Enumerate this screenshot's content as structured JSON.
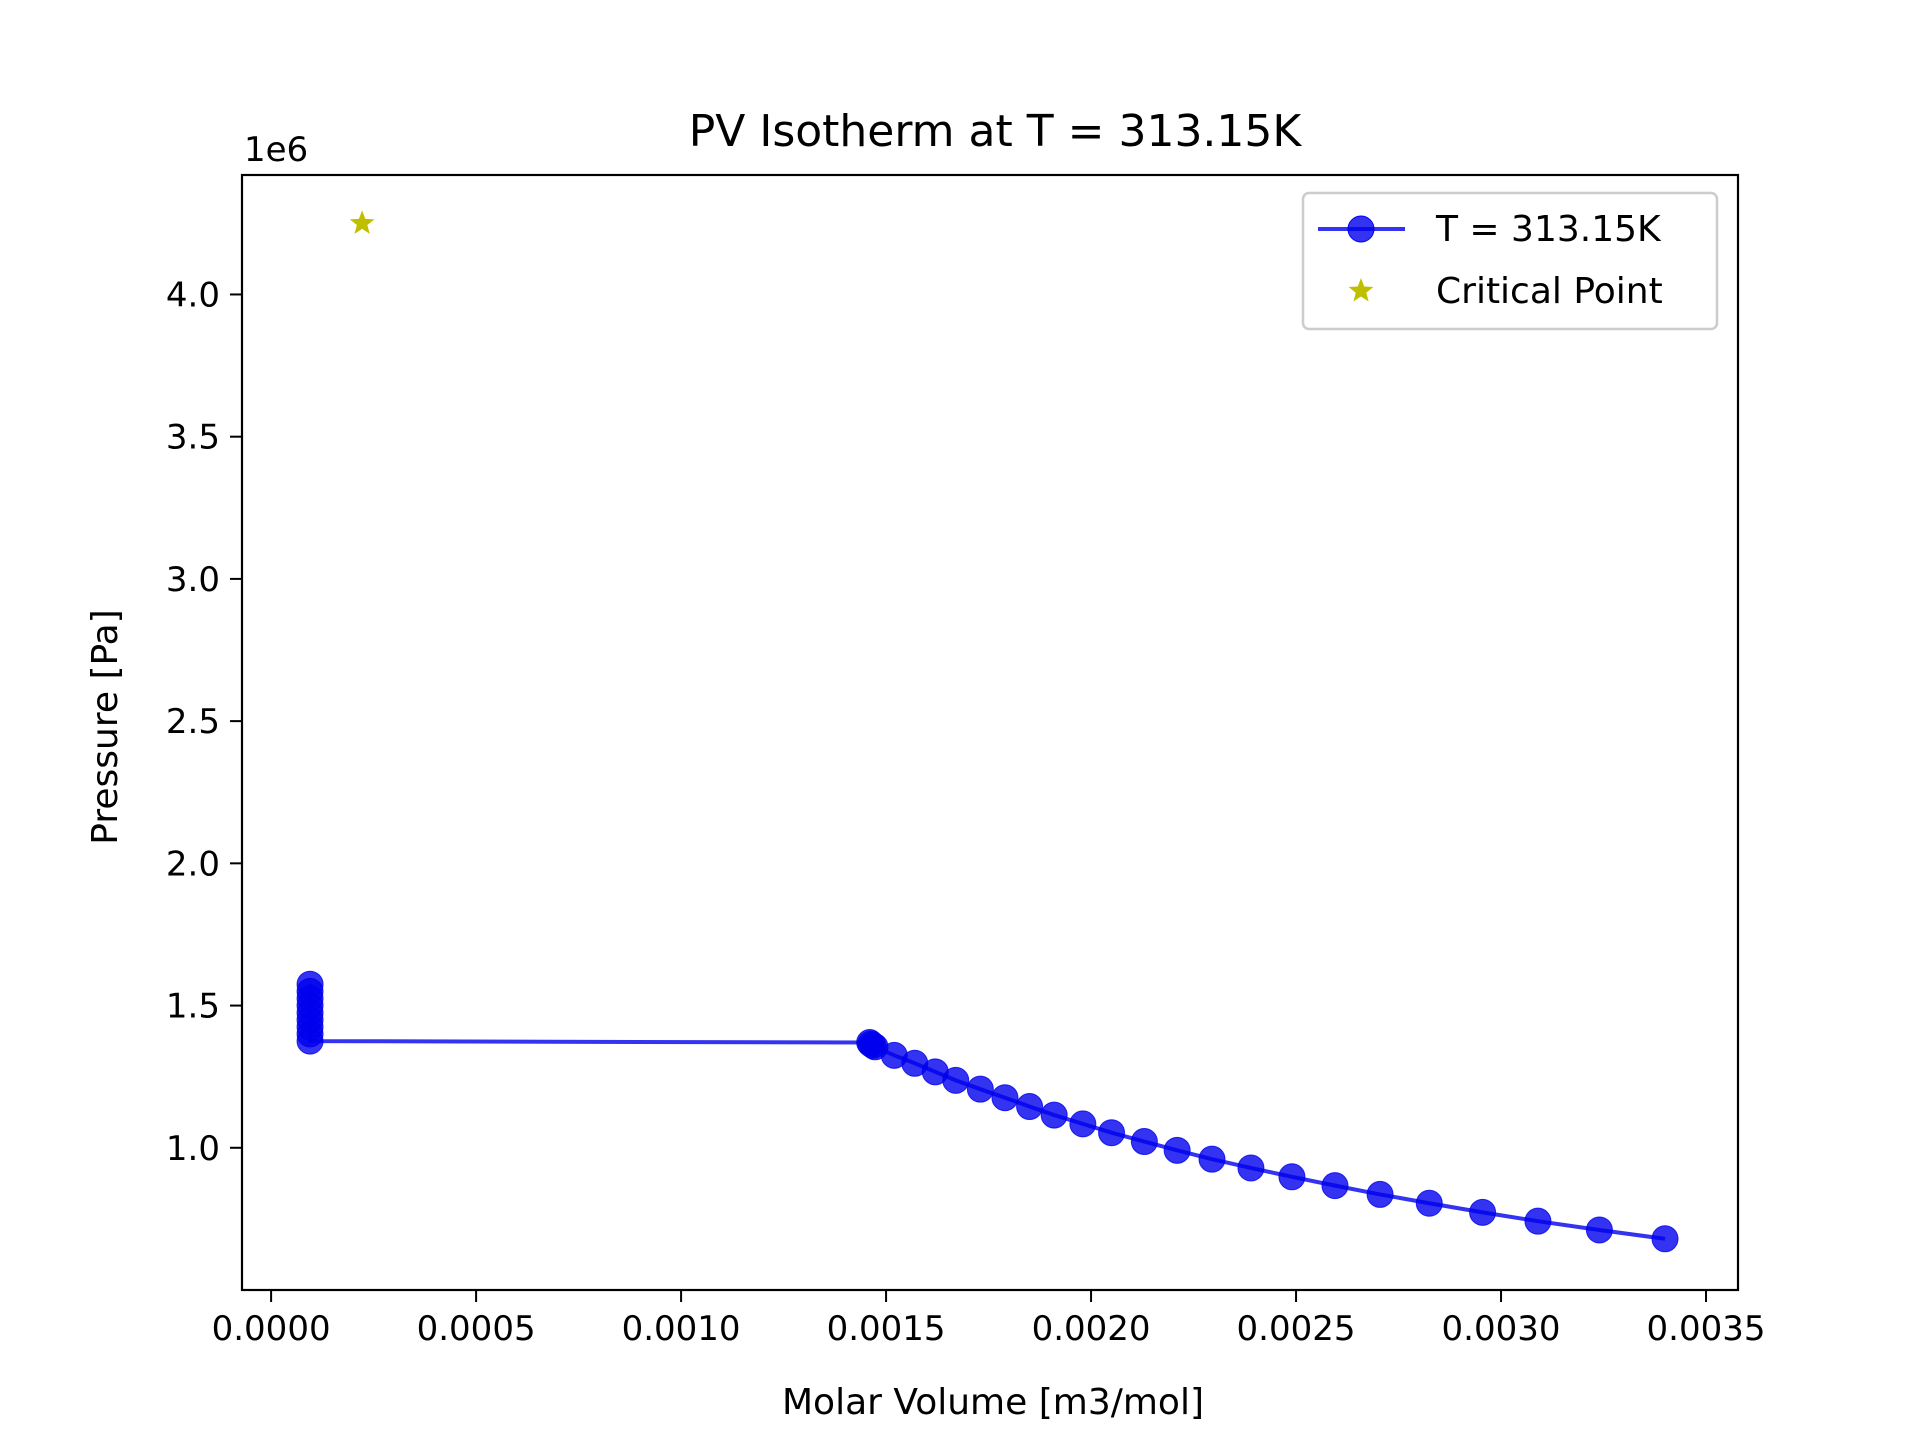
{
  "chart_data": {
    "type": "line",
    "title": "PV Isotherm at T = 313.15K",
    "xlabel": "Molar Volume [m3/mol]",
    "ylabel": "Pressure [Pa]",
    "y_offset_label": "1e6",
    "xlim": [
      -7.1e-05,
      0.003578
    ],
    "ylim": [
      0.5,
      4.42
    ],
    "y_scale_factor": 1000000,
    "x_ticks": [
      {
        "value": 0.0,
        "label": "0.0000"
      },
      {
        "value": 0.0005,
        "label": "0.0005"
      },
      {
        "value": 0.001,
        "label": "0.0010"
      },
      {
        "value": 0.0015,
        "label": "0.0015"
      },
      {
        "value": 0.002,
        "label": "0.0020"
      },
      {
        "value": 0.0025,
        "label": "0.0025"
      },
      {
        "value": 0.003,
        "label": "0.0030"
      },
      {
        "value": 0.0035,
        "label": "0.0035"
      }
    ],
    "y_ticks": [
      {
        "value": 1.0,
        "label": "1.0"
      },
      {
        "value": 1.5,
        "label": "1.5"
      },
      {
        "value": 2.0,
        "label": "2.0"
      },
      {
        "value": 2.5,
        "label": "2.5"
      },
      {
        "value": 3.0,
        "label": "3.0"
      },
      {
        "value": 3.5,
        "label": "3.5"
      },
      {
        "value": 4.0,
        "label": "4.0"
      }
    ],
    "grid": false,
    "legend_position": "top-right",
    "series": [
      {
        "name": "T = 313.15K",
        "color": "#0000ee",
        "marker": "circle",
        "x": [
          9.5e-05,
          9.5e-05,
          9.5e-05,
          9.5e-05,
          9.5e-05,
          9.5e-05,
          9.5e-05,
          9.5e-05,
          9.5e-05,
          0.00146,
          0.001463,
          0.001468,
          0.001473,
          0.00152,
          0.00157,
          0.00162,
          0.00167,
          0.00173,
          0.00179,
          0.00185,
          0.00191,
          0.00198,
          0.00205,
          0.00213,
          0.00221,
          0.002295,
          0.00239,
          0.00249,
          0.002595,
          0.002705,
          0.002825,
          0.002955,
          0.00309,
          0.00324,
          0.0034
        ],
        "y": [
          1.575,
          1.55,
          1.525,
          1.5,
          1.475,
          1.45,
          1.425,
          1.4,
          1.375,
          1.37,
          1.365,
          1.36,
          1.355,
          1.325,
          1.297,
          1.267,
          1.237,
          1.206,
          1.176,
          1.145,
          1.115,
          1.084,
          1.053,
          1.022,
          0.991,
          0.96,
          0.929,
          0.898,
          0.867,
          0.836,
          0.805,
          0.773,
          0.742,
          0.711,
          0.68
        ]
      },
      {
        "name": "Critical Point",
        "color": "#bfbf00",
        "marker": "star",
        "x": [
          0.000222
        ],
        "y": [
          4.25
        ]
      }
    ]
  }
}
